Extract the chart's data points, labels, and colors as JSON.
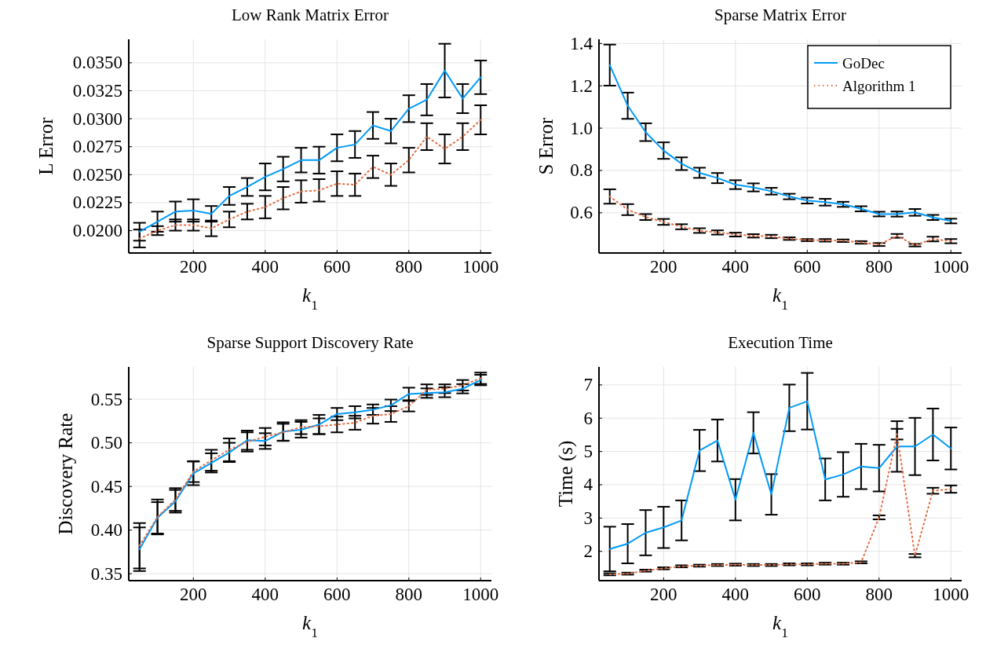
{
  "chart_data": [
    {
      "type": "line",
      "title": "Low Rank Matrix Error",
      "xlabel": "k$_{1}$",
      "ylabel": "L Error",
      "grid": true,
      "legend": false,
      "x": [
        50,
        100,
        150,
        200,
        250,
        300,
        350,
        400,
        450,
        500,
        550,
        600,
        650,
        700,
        750,
        800,
        850,
        900,
        950,
        1000
      ],
      "xlim": [
        20,
        1030
      ],
      "xticks": [
        200,
        400,
        600,
        800,
        1000
      ],
      "ylim": [
        0.018,
        0.0371
      ],
      "yticks": [
        {
          "value": 0.02,
          "label": "0.0200"
        },
        {
          "value": 0.0225,
          "label": "0.0225"
        },
        {
          "value": 0.025,
          "label": "0.0250"
        },
        {
          "value": 0.0275,
          "label": "0.0275"
        },
        {
          "value": 0.03,
          "label": "0.0300"
        },
        {
          "value": 0.0325,
          "label": "0.0325"
        },
        {
          "value": 0.035,
          "label": "0.0350"
        }
      ],
      "series": [
        {
          "color": "#009af9",
          "line_style": "solid",
          "values": [
            0.0199,
            0.0208,
            0.0217,
            0.0218,
            0.0215,
            0.0231,
            0.0239,
            0.0248,
            0.0255,
            0.0263,
            0.0263,
            0.0274,
            0.0277,
            0.0294,
            0.0289,
            0.0309,
            0.0317,
            0.0343,
            0.0318,
            0.0337
          ],
          "errors": [
            0.0008,
            0.0009,
            0.0009,
            0.001,
            0.0007,
            0.0008,
            0.0008,
            0.0012,
            0.0011,
            0.0011,
            0.0012,
            0.0012,
            0.0012,
            0.0012,
            0.0011,
            0.0012,
            0.0014,
            0.0024,
            0.0013,
            0.0015
          ]
        },
        {
          "color": "#e26f46",
          "line_style": "dotted",
          "values": [
            0.0193,
            0.02,
            0.0205,
            0.0205,
            0.0202,
            0.021,
            0.0217,
            0.0221,
            0.0229,
            0.0235,
            0.0236,
            0.0242,
            0.0241,
            0.0257,
            0.025,
            0.0263,
            0.0284,
            0.0273,
            0.0284,
            0.0299
          ],
          "errors": [
            0.0008,
            0.0004,
            0.0005,
            0.0005,
            0.0007,
            0.0007,
            0.0007,
            0.001,
            0.001,
            0.001,
            0.001,
            0.0011,
            0.001,
            0.001,
            0.001,
            0.0011,
            0.0012,
            0.0013,
            0.0012,
            0.0013
          ]
        }
      ]
    },
    {
      "type": "line",
      "title": "Sparse Matrix Error",
      "xlabel": "k$_{1}$",
      "ylabel": "S Error",
      "grid": true,
      "legend": "top right",
      "x": [
        50,
        100,
        150,
        200,
        250,
        300,
        350,
        400,
        450,
        500,
        550,
        600,
        650,
        700,
        750,
        800,
        850,
        900,
        950,
        1000
      ],
      "xlim": [
        20,
        1030
      ],
      "xticks": [
        200,
        400,
        600,
        800,
        1000
      ],
      "ylim": [
        0.41,
        1.42
      ],
      "yticks": [
        {
          "value": 0.6,
          "label": "0.6"
        },
        {
          "value": 0.8,
          "label": "0.8"
        },
        {
          "value": 1.0,
          "label": "1.0"
        },
        {
          "value": 1.2,
          "label": "1.2"
        },
        {
          "value": 1.4,
          "label": "1.4"
        }
      ],
      "series": [
        {
          "name": "GoDec",
          "color": "#009af9",
          "line_style": "solid",
          "values": [
            1.298,
            1.106,
            0.981,
            0.894,
            0.832,
            0.789,
            0.764,
            0.733,
            0.72,
            0.702,
            0.677,
            0.658,
            0.65,
            0.64,
            0.619,
            0.594,
            0.594,
            0.602,
            0.578,
            0.561
          ],
          "errors": [
            0.097,
            0.062,
            0.042,
            0.039,
            0.03,
            0.024,
            0.024,
            0.021,
            0.019,
            0.016,
            0.013,
            0.014,
            0.016,
            0.012,
            0.012,
            0.011,
            0.012,
            0.016,
            0.012,
            0.011
          ]
        },
        {
          "name": "Algorithm 1",
          "color": "#e26f46",
          "line_style": "dotted",
          "values": [
            0.677,
            0.615,
            0.58,
            0.557,
            0.534,
            0.516,
            0.507,
            0.497,
            0.491,
            0.488,
            0.478,
            0.471,
            0.47,
            0.468,
            0.46,
            0.45,
            0.491,
            0.447,
            0.476,
            0.466
          ],
          "errors": [
            0.034,
            0.026,
            0.014,
            0.014,
            0.012,
            0.011,
            0.01,
            0.009,
            0.008,
            0.008,
            0.006,
            0.005,
            0.006,
            0.006,
            0.006,
            0.007,
            0.009,
            0.006,
            0.011,
            0.01
          ]
        }
      ]
    },
    {
      "type": "line",
      "title": "Sparse Support Discovery Rate",
      "xlabel": "k$_{1}$",
      "ylabel": "Discovery Rate",
      "grid": true,
      "legend": false,
      "x": [
        50,
        100,
        150,
        200,
        250,
        300,
        350,
        400,
        450,
        500,
        550,
        600,
        650,
        700,
        750,
        800,
        850,
        900,
        950,
        1000
      ],
      "xlim": [
        20,
        1030
      ],
      "xticks": [
        200,
        400,
        600,
        800,
        1000
      ],
      "ylim": [
        0.342,
        0.587
      ],
      "yticks": [
        {
          "value": 0.35,
          "label": "0.35"
        },
        {
          "value": 0.4,
          "label": "0.40"
        },
        {
          "value": 0.45,
          "label": "0.45"
        },
        {
          "value": 0.5,
          "label": "0.50"
        },
        {
          "value": 0.55,
          "label": "0.55"
        }
      ],
      "series": [
        {
          "color": "#009af9",
          "line_style": "solid",
          "values": [
            0.378,
            0.414,
            0.433,
            0.465,
            0.477,
            0.489,
            0.503,
            0.502,
            0.513,
            0.515,
            0.521,
            0.533,
            0.535,
            0.538,
            0.543,
            0.556,
            0.557,
            0.558,
            0.562,
            0.572
          ],
          "errors": [
            0.025,
            0.018,
            0.013,
            0.0135,
            0.011,
            0.011,
            0.011,
            0.009,
            0.0105,
            0.009,
            0.011,
            0.007,
            0.007,
            0.006,
            0.0066,
            0.0072,
            0.0054,
            0.0057,
            0.0053,
            0.006
          ]
        },
        {
          "color": "#e26f46",
          "line_style": "dotted",
          "values": [
            0.382,
            0.415,
            0.435,
            0.467,
            0.48,
            0.492,
            0.501,
            0.507,
            0.512,
            0.518,
            0.519,
            0.521,
            0.523,
            0.531,
            0.533,
            0.542,
            0.561,
            0.562,
            0.566,
            0.574
          ],
          "errors": [
            0.026,
            0.02,
            0.013,
            0.012,
            0.012,
            0.013,
            0.011,
            0.01,
            0.0098,
            0.008,
            0.009,
            0.009,
            0.008,
            0.009,
            0.009,
            0.006,
            0.006,
            0.005,
            0.006,
            0.0065
          ]
        }
      ]
    },
    {
      "type": "line",
      "title": "Execution Time",
      "xlabel": "k$_{1}$",
      "ylabel": "Time (s)",
      "grid": true,
      "legend": false,
      "x": [
        50,
        100,
        150,
        200,
        250,
        300,
        350,
        400,
        450,
        500,
        550,
        600,
        650,
        700,
        750,
        800,
        850,
        900,
        950,
        1000
      ],
      "xlim": [
        20,
        1030
      ],
      "xticks": [
        200,
        400,
        600,
        800,
        1000
      ],
      "ylim": [
        1.12,
        7.54
      ],
      "yticks": [
        2,
        3,
        4,
        5,
        6,
        7
      ],
      "series": [
        {
          "color": "#009af9",
          "line_style": "solid",
          "values": [
            2.07,
            2.23,
            2.56,
            2.72,
            2.93,
            5.03,
            5.33,
            3.55,
            5.56,
            3.71,
            6.31,
            6.51,
            4.16,
            4.31,
            4.55,
            4.5,
            5.15,
            5.15,
            5.51,
            5.09
          ],
          "errors": [
            0.67,
            0.59,
            0.68,
            0.62,
            0.6,
            0.62,
            0.63,
            0.62,
            0.62,
            0.61,
            0.7,
            0.85,
            0.63,
            0.67,
            0.68,
            0.7,
            0.76,
            0.86,
            0.78,
            0.63
          ]
        },
        {
          "color": "#e26f46",
          "line_style": "dotted",
          "values": [
            1.31,
            1.33,
            1.42,
            1.49,
            1.55,
            1.57,
            1.59,
            1.6,
            1.59,
            1.59,
            1.61,
            1.61,
            1.63,
            1.63,
            1.67,
            3.02,
            5.52,
            1.87,
            3.82,
            3.87
          ],
          "errors": [
            0.03,
            0.03,
            0.03,
            0.03,
            0.03,
            0.03,
            0.03,
            0.03,
            0.03,
            0.03,
            0.03,
            0.03,
            0.03,
            0.03,
            0.03,
            0.06,
            0.16,
            0.05,
            0.09,
            0.11
          ]
        }
      ]
    }
  ]
}
